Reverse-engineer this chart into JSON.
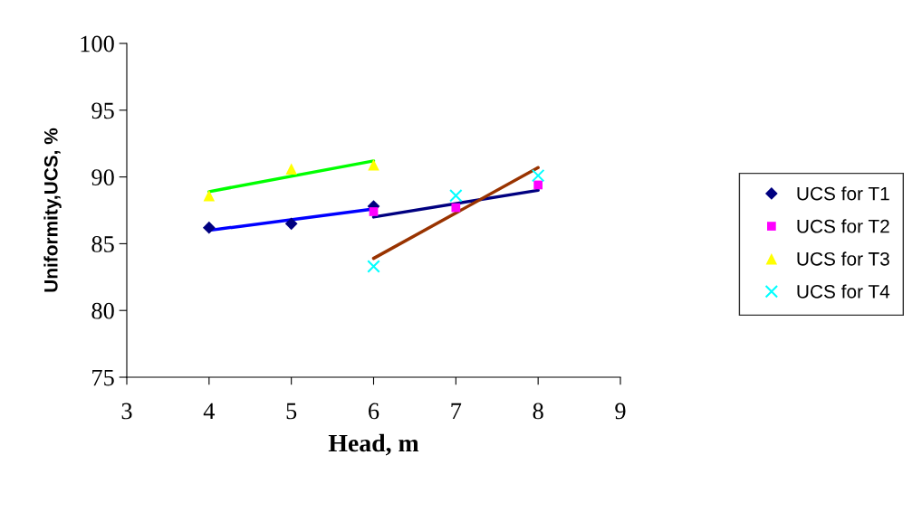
{
  "chart_data": {
    "type": "scatter",
    "xlabel": "Head, m",
    "ylabel": "Uniformity,UCS, %",
    "xlim": [
      3,
      9
    ],
    "xticks": [
      3,
      4,
      5,
      6,
      7,
      8,
      9
    ],
    "ylim": [
      75,
      100
    ],
    "yticks": [
      75,
      80,
      85,
      90,
      95,
      100
    ],
    "grid": false,
    "legend": "right",
    "series": [
      {
        "name": "UCS for T1",
        "color": "#000080",
        "marker": "diamond",
        "x": [
          4,
          5,
          6
        ],
        "values": [
          86.2,
          86.5,
          87.8
        ]
      },
      {
        "name": "UCS for T2",
        "color": "#ff00ff",
        "marker": "square",
        "x": [
          6,
          7,
          8
        ],
        "values": [
          87.4,
          87.7,
          89.4
        ]
      },
      {
        "name": "UCS for T3",
        "color": "#ffff00",
        "marker": "triangle",
        "x": [
          4,
          5,
          6
        ],
        "values": [
          88.6,
          90.6,
          90.9
        ]
      },
      {
        "name": "UCS for T4",
        "color": "#00ffff",
        "marker": "cross",
        "x": [
          6,
          7,
          8
        ],
        "values": [
          83.3,
          88.6,
          90.1
        ]
      },
      {
        "type": "line",
        "color": "#0000ff",
        "marker": "none",
        "x": [
          4,
          6
        ],
        "values": [
          86.0,
          87.6
        ]
      },
      {
        "type": "line",
        "color": "#000080",
        "marker": "none",
        "x": [
          6,
          8
        ],
        "values": [
          87.0,
          89.0
        ]
      },
      {
        "type": "line",
        "color": "#00ff00",
        "marker": "none",
        "x": [
          4,
          6
        ],
        "values": [
          88.9,
          91.2
        ]
      },
      {
        "type": "line",
        "color": "#993300",
        "marker": "none",
        "x": [
          6,
          8
        ],
        "values": [
          83.9,
          90.7
        ]
      }
    ]
  }
}
